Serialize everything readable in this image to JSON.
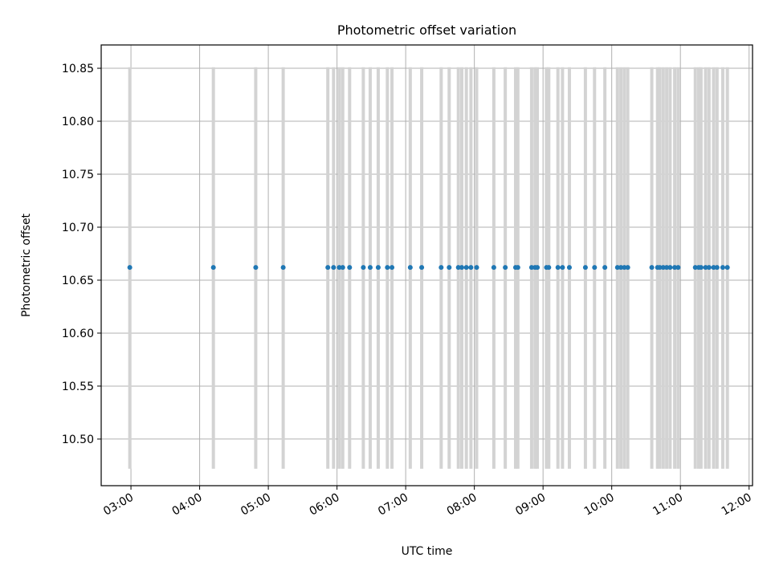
{
  "chart_data": {
    "type": "scatter",
    "title": "Photometric offset variation",
    "xlabel": "UTC time",
    "ylabel": "Photometric offset",
    "xlim": [
      "02:34",
      "12:03"
    ],
    "ylim": [
      10.456,
      10.872
    ],
    "x_tick_labels": [
      "03:00",
      "04:00",
      "05:00",
      "06:00",
      "07:00",
      "08:00",
      "09:00",
      "10:00",
      "11:00",
      "12:00"
    ],
    "y_tick_labels": [
      "10.50",
      "10.55",
      "10.60",
      "10.65",
      "10.70",
      "10.75",
      "10.80",
      "10.85"
    ],
    "grid": true,
    "error_bars": {
      "lower": 10.472,
      "upper": 10.851,
      "color": "#d3d3d3"
    },
    "series": [
      {
        "color": "#1f77b4",
        "y": 10.662,
        "x": [
          "02:59",
          "04:12",
          "04:49",
          "05:13",
          "05:52",
          "05:57",
          "06:02",
          "06:05",
          "06:11",
          "06:23",
          "06:29",
          "06:36",
          "06:44",
          "06:48",
          "07:04",
          "07:14",
          "07:31",
          "07:38",
          "07:46",
          "07:49",
          "07:53",
          "07:57",
          "08:02",
          "08:17",
          "08:27",
          "08:36",
          "08:38",
          "08:50",
          "08:53",
          "08:55",
          "09:03",
          "09:05",
          "09:13",
          "09:17",
          "09:23",
          "09:37",
          "09:45",
          "09:54",
          "10:05",
          "10:08",
          "10:11",
          "10:14",
          "10:35",
          "10:40",
          "10:42",
          "10:45",
          "10:48",
          "10:51",
          "10:55",
          "10:58",
          "11:13",
          "11:16",
          "11:18",
          "11:22",
          "11:25",
          "11:29",
          "11:32",
          "11:37",
          "11:41"
        ]
      }
    ]
  }
}
